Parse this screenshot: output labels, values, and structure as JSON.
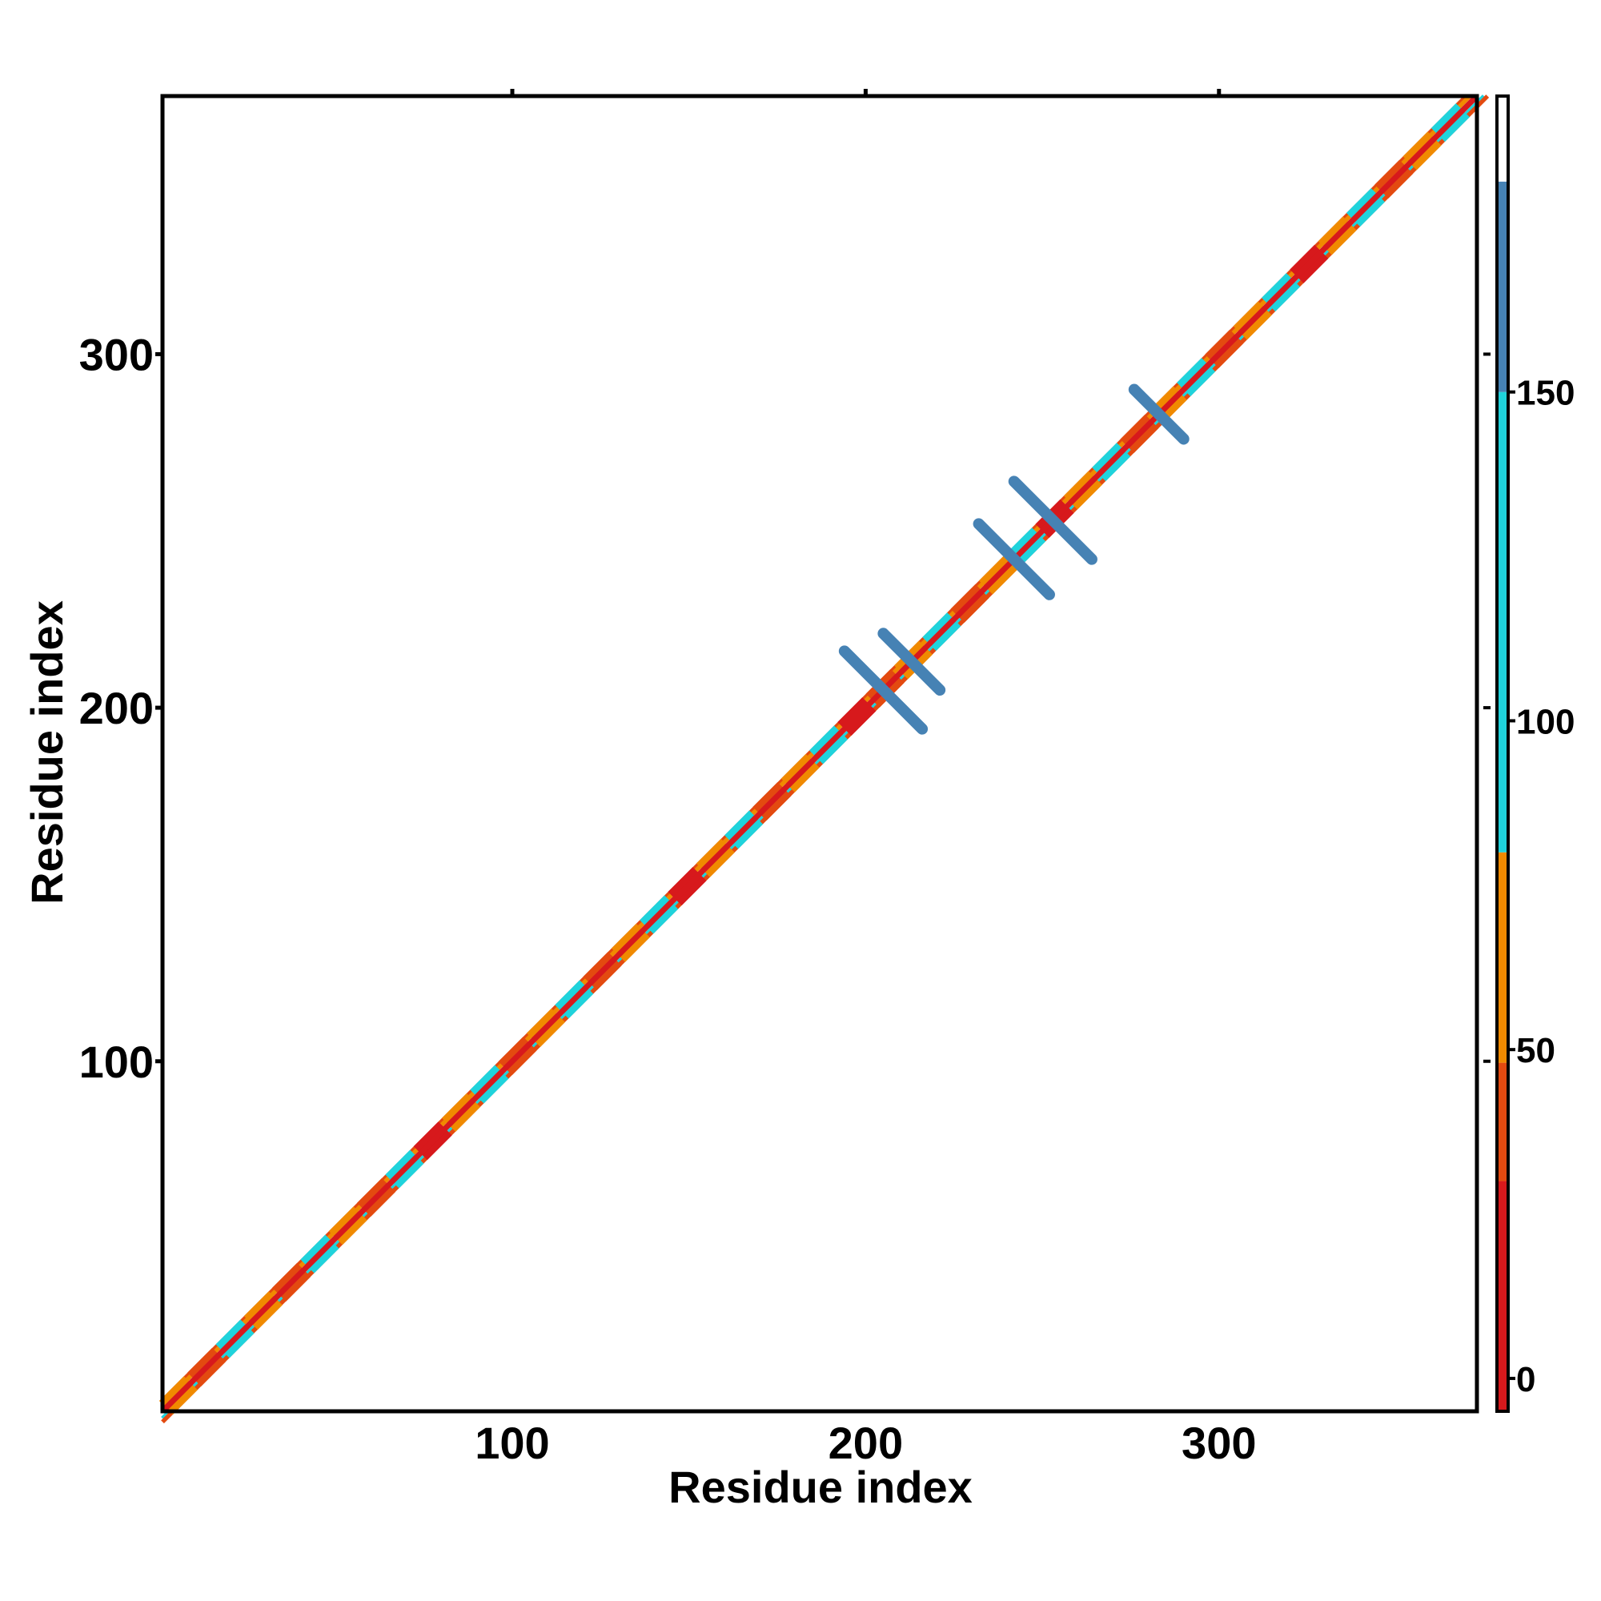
{
  "chart_data": {
    "type": "heatmap",
    "title": "",
    "xlabel": "Residue index",
    "ylabel": "Residue index",
    "xlim": [
      1,
      373
    ],
    "ylim": [
      1,
      373
    ],
    "x_ticks": [
      100,
      200,
      300
    ],
    "y_ticks": [
      100,
      200,
      300
    ],
    "grid": false,
    "legend": "colorbar-right",
    "colorbar": {
      "ticks": [
        0,
        50,
        100,
        150
      ],
      "range": [
        -5,
        195
      ],
      "segments": [
        {
          "from": -5,
          "to": 30,
          "color": "#d7191c"
        },
        {
          "from": 30,
          "to": 48,
          "color": "#e34a10"
        },
        {
          "from": 48,
          "to": 80,
          "color": "#f08a00"
        },
        {
          "from": 80,
          "to": 150,
          "color": "#1fd3dc"
        },
        {
          "from": 150,
          "to": 182,
          "color": "#4682b4"
        },
        {
          "from": 182,
          "to": 195,
          "color": "#ffffff"
        }
      ]
    },
    "diagonal": {
      "from": 1,
      "to": 373,
      "core_value": 0,
      "band_values": [
        40,
        60,
        100
      ],
      "segment_starts": [
        2,
        10,
        18,
        26,
        34,
        42,
        50,
        58,
        66,
        74,
        82,
        90,
        98,
        106,
        114,
        122,
        130,
        138,
        146,
        154,
        162,
        170,
        178,
        186,
        194,
        202,
        210,
        218,
        226,
        234,
        242,
        250,
        258,
        266,
        274,
        282,
        290,
        298,
        306,
        314,
        322,
        330,
        338,
        346,
        354,
        362
      ],
      "segment_values": [
        60,
        40,
        100,
        60,
        40,
        100,
        60,
        40,
        100,
        0,
        60,
        100,
        40,
        60,
        100,
        40,
        60,
        100,
        0,
        60,
        100,
        40,
        60,
        100,
        0,
        40,
        60,
        100,
        40,
        60,
        100,
        0,
        60,
        100,
        40,
        60,
        100,
        40,
        60,
        100,
        0,
        60,
        100,
        40,
        60,
        100
      ]
    },
    "cross_contacts": [
      {
        "center": [
          205,
          205
        ],
        "half_length": 11,
        "value": 160
      },
      {
        "center": [
          213,
          213
        ],
        "half_length": 8,
        "value": 160
      },
      {
        "center": [
          242,
          242
        ],
        "half_length": 10,
        "value": 160
      },
      {
        "center": [
          253,
          253
        ],
        "half_length": 11,
        "value": 160
      },
      {
        "center": [
          283,
          283
        ],
        "half_length": 7,
        "value": 160
      }
    ]
  }
}
